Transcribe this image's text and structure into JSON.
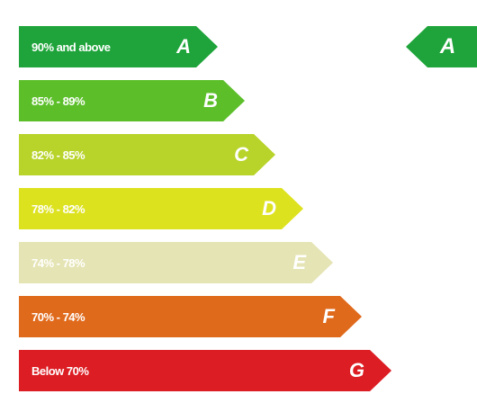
{
  "ratings": [
    {
      "letter": "A",
      "range": "90% and above",
      "color": "#1ea43a"
    },
    {
      "letter": "B",
      "range": "85% - 89%",
      "color": "#5cbf2a"
    },
    {
      "letter": "C",
      "range": "82% - 85%",
      "color": "#b8d32a"
    },
    {
      "letter": "D",
      "range": "78% - 82%",
      "color": "#dde21f"
    },
    {
      "letter": "E",
      "range": "74% - 78%",
      "color": "#e5e4b4"
    },
    {
      "letter": "F",
      "range": "70% - 74%",
      "color": "#e06a1c"
    },
    {
      "letter": "G",
      "range": "Below 70%",
      "color": "#dc1d23"
    }
  ],
  "current_rating": {
    "letter": "A",
    "color": "#1ea43a"
  }
}
